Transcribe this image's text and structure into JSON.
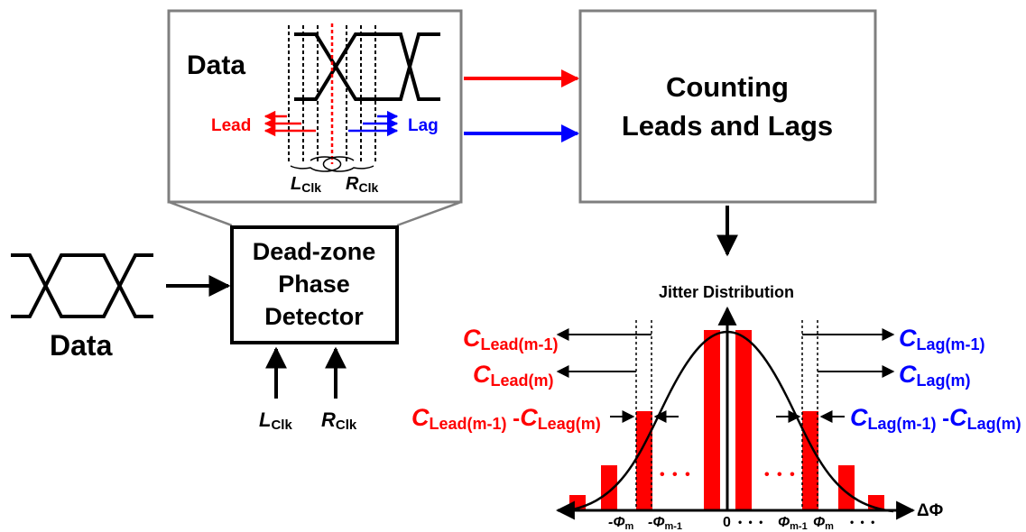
{
  "colors": {
    "lead": "#ff0000",
    "lag": "#0000ff",
    "ink": "#000000",
    "box_border_gray": "#7f7f7f",
    "bar": "#ff0000"
  },
  "zoom_box": {
    "data_label": "Data",
    "lead_label": "Lead",
    "lag_label": "Lag",
    "lclk_main": "L",
    "lclk_sub": "Clk",
    "rclk_main": "R",
    "rclk_sub": "Clk"
  },
  "counting_box": {
    "line1": "Counting",
    "line2": "Leads and Lags"
  },
  "phase_detector": {
    "line1": "Dead-zone",
    "line2": "Phase",
    "line3": "Detector"
  },
  "input_data_label": "Data",
  "clock_inputs": {
    "left_main": "L",
    "left_sub": "Clk",
    "right_main": "R",
    "right_sub": "Clk"
  },
  "jitter": {
    "title": "Jitter Distribution",
    "axis_label": "ΔΦ",
    "dots": "• • •",
    "left_labels": [
      {
        "main": "C",
        "sub": "Lead(m-1)"
      },
      {
        "main": "C",
        "sub": "Lead(m)"
      }
    ],
    "left_diff": {
      "main1": "C",
      "sub1": "Lead(m-1)",
      "sep": " -",
      "main2": "C",
      "sub2": "Leag(m)"
    },
    "right_labels": [
      {
        "main": "C",
        "sub": "Lag(m-1)"
      },
      {
        "main": "C",
        "sub": "Lag(m)"
      }
    ],
    "right_diff": {
      "main1": "C",
      "sub1": "Lag(m-1)",
      "sep": " -",
      "main2": "C",
      "sub2": "Lag(m)"
    },
    "ticks": {
      "neg_m": {
        "main": "-Φ",
        "sub": "m"
      },
      "neg_m1": {
        "main": "-Φ",
        "sub": "m-1"
      },
      "zero": "0",
      "mid_dots": "• • •",
      "pos_m1": {
        "main": "Φ",
        "sub": "m-1"
      },
      "pos_m": {
        "main": "Φ",
        "sub": "m"
      },
      "end_dots": "• • •"
    }
  }
}
